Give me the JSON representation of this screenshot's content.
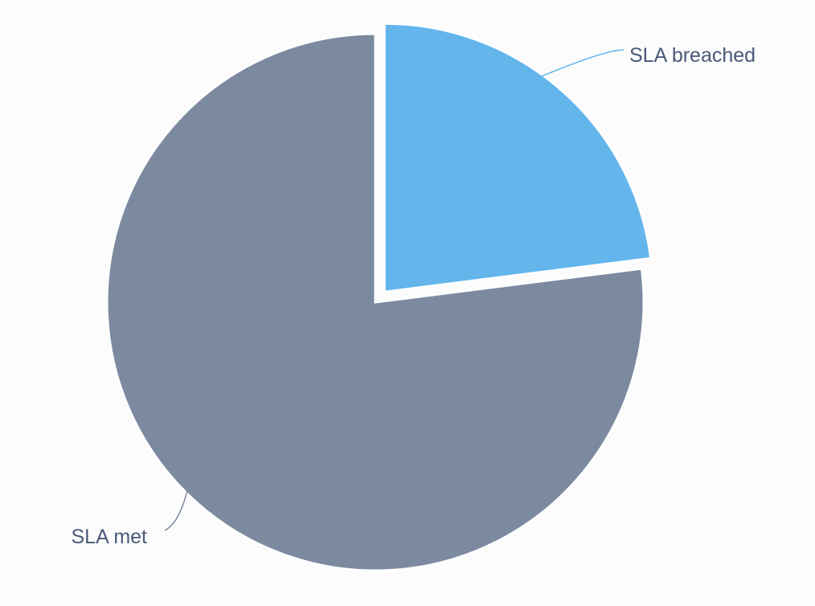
{
  "chart_data": {
    "type": "pie",
    "title": "",
    "slices": [
      {
        "label": "SLA breached",
        "value": 23,
        "color": "#63b5ec",
        "exploded": true
      },
      {
        "label": "SLA met",
        "value": 77,
        "color": "#7c8aa0",
        "exploded": false
      }
    ],
    "start_angle_deg": 0,
    "direction": "clockwise",
    "legend": "none",
    "data_labels": "outside-with-leader-lines"
  }
}
